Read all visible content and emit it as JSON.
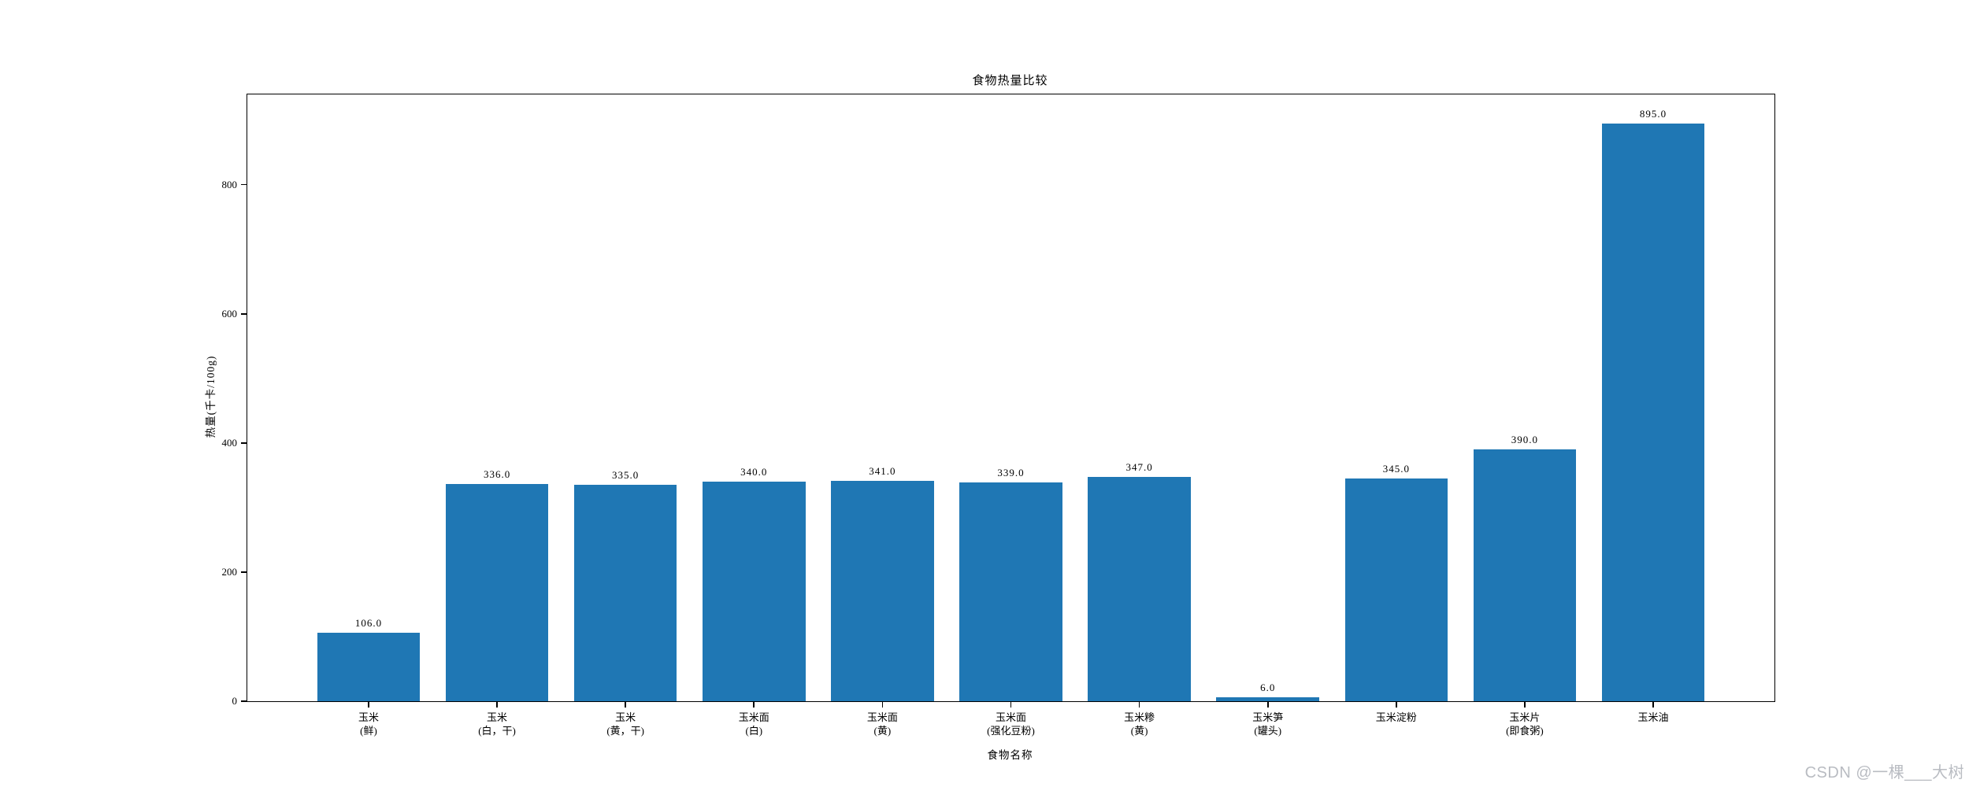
{
  "watermark": "CSDN @一棵___大树",
  "chart_data": {
    "type": "bar",
    "title": "食物热量比较",
    "xlabel": "食物名称",
    "ylabel": "热量(千卡/100g)",
    "categories": [
      "玉米\n(鲜)",
      "玉米\n(白，干)",
      "玉米\n(黄，干)",
      "玉米面\n(白)",
      "玉米面\n(黄)",
      "玉米面\n(强化豆粉)",
      "玉米糁\n(黄)",
      "玉米笋\n(罐头)",
      "玉米淀粉",
      "玉米片\n(即食粥)",
      "玉米油"
    ],
    "values": [
      106.0,
      336.0,
      335.0,
      340.0,
      341.0,
      339.0,
      347.0,
      6.0,
      345.0,
      390.0,
      895.0
    ],
    "bar_value_labels": [
      "106.0",
      "336.0",
      "335.0",
      "340.0",
      "341.0",
      "339.0",
      "347.0",
      "6.0",
      "345.0",
      "390.0",
      "895.0"
    ],
    "yticks": [
      0,
      200,
      400,
      600,
      800
    ],
    "ylim": [
      0,
      939.75
    ],
    "bar_color": "#1f77b4",
    "grid": false,
    "legend_position": "none"
  }
}
